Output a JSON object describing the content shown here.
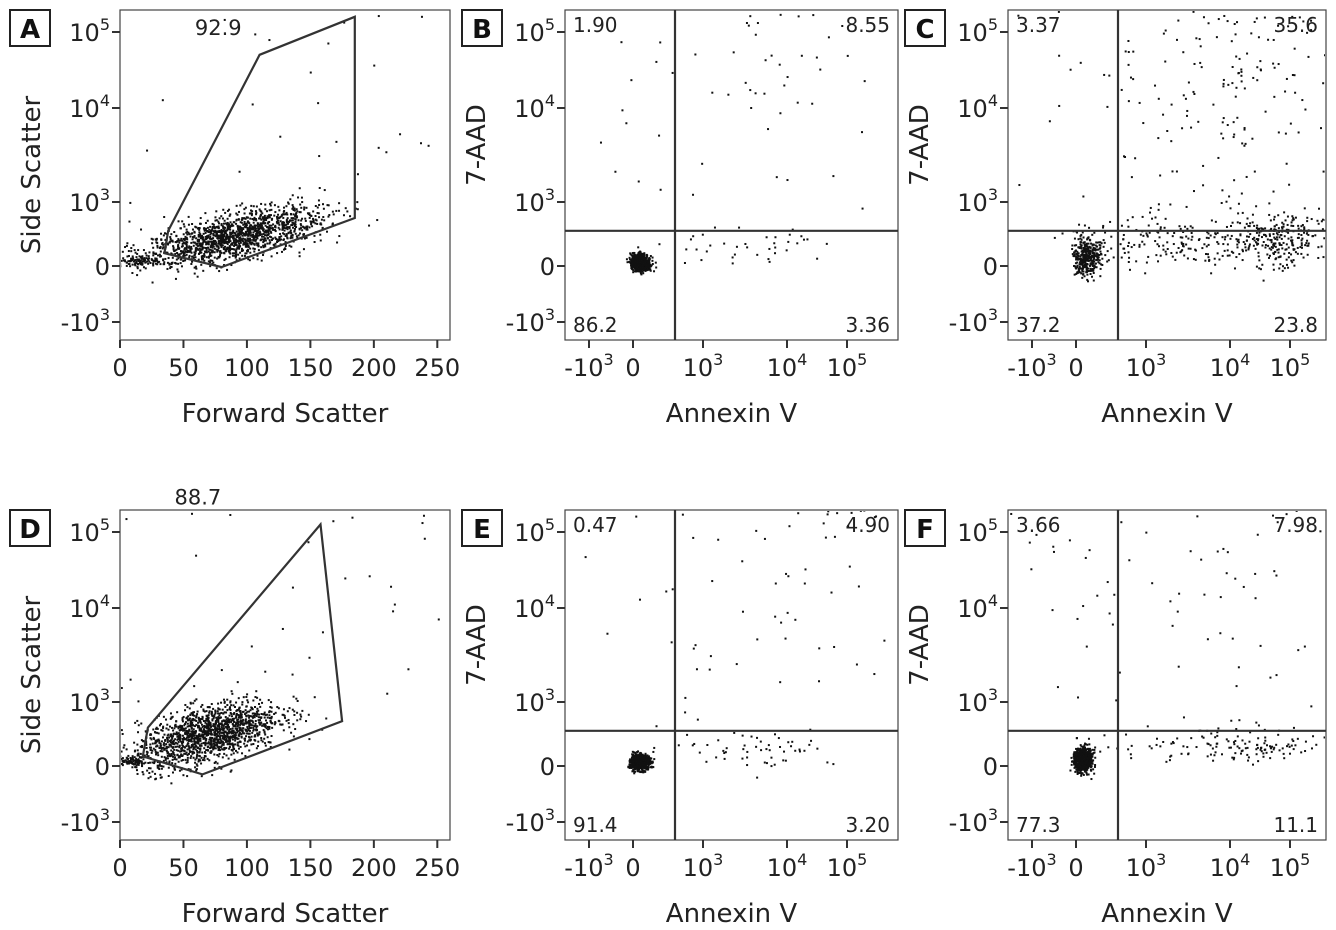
{
  "panels": [
    {
      "id": "A",
      "letter": "A",
      "type": "scatter-gate",
      "xlabel": "Forward Scatter",
      "ylabel": "Side Scatter",
      "x_ticks": [
        "0",
        "50",
        "100",
        "150",
        "200",
        "250"
      ],
      "y_ticks": [
        "-10",
        "0",
        "10",
        "10",
        "10"
      ],
      "y_tick_exponents": [
        "3",
        "",
        "3",
        "4",
        "5"
      ],
      "gate_value": "92.9",
      "chart_data": {
        "type": "scatter",
        "x_scale": "linear (×1000)",
        "y_scale": "biexponential",
        "xlim": [
          0,
          260
        ],
        "gate_percent": 92.9,
        "gate_polygon": [
          [
            38,
            0.55
          ],
          [
            110,
            2.7
          ],
          [
            185,
            3.2
          ],
          [
            185,
            0.75
          ],
          [
            80,
            -0.02
          ],
          [
            35,
            0.2
          ]
        ],
        "clusters": [
          {
            "x_mean": 90,
            "x_sd": 35,
            "y_mean": 0.45,
            "y_sd": 0.18,
            "n": 1500,
            "slope": 0.004
          },
          {
            "x_mean": 12,
            "x_sd": 8,
            "y_mean": 0.07,
            "y_sd": 0.04,
            "n": 80,
            "slope": 0
          }
        ]
      }
    },
    {
      "id": "B",
      "letter": "B",
      "type": "quadrant",
      "xlabel": "Annexin V",
      "ylabel": "7-AAD",
      "x_ticks": [
        "-10",
        "0",
        "10",
        "10",
        "10"
      ],
      "x_tick_exponents": [
        "3",
        "",
        "3",
        "4",
        "5"
      ],
      "y_ticks": [
        "-10",
        "0",
        "10",
        "10",
        "10"
      ],
      "y_tick_exponents": [
        "3",
        "",
        "3",
        "4",
        "5"
      ],
      "quadrants": {
        "ul": "1.90",
        "ur": "8.55",
        "ll": "86.2",
        "lr": "3.36"
      },
      "chart_data": {
        "type": "scatter",
        "x_scale": "biexponential",
        "y_scale": "biexponential",
        "quadrant_percent": {
          "ul": 1.9,
          "ur": 8.55,
          "ll": 86.2,
          "lr": 3.36
        },
        "clusters": [
          {
            "x_mean": 0.1,
            "x_sd": 0.07,
            "y_mean": 0.05,
            "y_sd": 0.07,
            "n": 650,
            "slope": 0
          },
          {
            "x_mean": 3.0,
            "x_sd": 0.3,
            "y_mean": 4.1,
            "y_sd": 0.12,
            "n": 120,
            "slope": 0
          },
          {
            "x_mean": 1.6,
            "x_sd": 0.8,
            "y_mean": 3.0,
            "y_sd": 0.9,
            "n": 45,
            "slope": 0
          },
          {
            "x_mean": 1.5,
            "x_sd": 0.7,
            "y_mean": 0.3,
            "y_sd": 0.2,
            "n": 40,
            "slope": 0
          }
        ]
      }
    },
    {
      "id": "C",
      "letter": "C",
      "type": "quadrant",
      "xlabel": "Annexin V",
      "ylabel": "7-AAD",
      "x_ticks": [
        "-10",
        "0",
        "10",
        "10",
        "10"
      ],
      "x_tick_exponents": [
        "3",
        "",
        "3",
        "4",
        "5"
      ],
      "y_ticks": [
        "-10",
        "0",
        "10",
        "10",
        "10"
      ],
      "y_tick_exponents": [
        "3",
        "",
        "3",
        "4",
        "5"
      ],
      "quadrants": {
        "ul": "3.37",
        "ur": "35.6",
        "ll": "37.2",
        "lr": "23.8"
      },
      "chart_data": {
        "type": "scatter",
        "x_scale": "biexponential",
        "y_scale": "biexponential",
        "quadrant_percent": {
          "ul": 3.37,
          "ur": 35.6,
          "ll": 37.2,
          "lr": 23.8
        },
        "clusters": [
          {
            "x_mean": 0.15,
            "x_sd": 0.1,
            "y_mean": 0.12,
            "y_sd": 0.15,
            "n": 350,
            "slope": 0
          },
          {
            "x_mean": 2.9,
            "x_sd": 0.3,
            "y_mean": 4.1,
            "y_sd": 0.2,
            "n": 280,
            "slope": 0
          },
          {
            "x_mean": 2.8,
            "x_sd": 0.45,
            "y_mean": 0.4,
            "y_sd": 0.22,
            "n": 260,
            "slope": 0
          },
          {
            "x_mean": 1.3,
            "x_sd": 0.7,
            "y_mean": 0.4,
            "y_sd": 0.2,
            "n": 200,
            "slope": 0
          },
          {
            "x_mean": 2.0,
            "x_sd": 0.9,
            "y_mean": 2.5,
            "y_sd": 0.9,
            "n": 180,
            "slope": 0
          }
        ]
      }
    },
    {
      "id": "D",
      "letter": "D",
      "type": "scatter-gate",
      "xlabel": "Forward Scatter",
      "ylabel": "Side Scatter",
      "x_ticks": [
        "0",
        "50",
        "100",
        "150",
        "200",
        "250"
      ],
      "y_ticks": [
        "-10",
        "0",
        "10",
        "10",
        "10"
      ],
      "y_tick_exponents": [
        "3",
        "",
        "3",
        "4",
        "5"
      ],
      "gate_value": "88.7",
      "chart_data": {
        "type": "scatter",
        "x_scale": "linear (×1000)",
        "y_scale": "biexponential",
        "xlim": [
          0,
          260
        ],
        "gate_percent": 88.7,
        "gate_polygon": [
          [
            22,
            0.6
          ],
          [
            158,
            3.1
          ],
          [
            175,
            0.7
          ],
          [
            65,
            -0.15
          ],
          [
            18,
            0.15
          ]
        ],
        "clusters": [
          {
            "x_mean": 70,
            "x_sd": 28,
            "y_mean": 0.5,
            "y_sd": 0.22,
            "n": 1500,
            "slope": 0.005
          },
          {
            "x_mean": 10,
            "x_sd": 6,
            "y_mean": 0.07,
            "y_sd": 0.04,
            "n": 80,
            "slope": 0
          }
        ]
      }
    },
    {
      "id": "E",
      "letter": "E",
      "type": "quadrant",
      "xlabel": "Annexin V",
      "ylabel": "7-AAD",
      "x_ticks": [
        "-10",
        "0",
        "10",
        "10",
        "10"
      ],
      "x_tick_exponents": [
        "3",
        "",
        "3",
        "4",
        "5"
      ],
      "y_ticks": [
        "-10",
        "0",
        "10",
        "10",
        "10"
      ],
      "y_tick_exponents": [
        "3",
        "",
        "3",
        "4",
        "5"
      ],
      "quadrants": {
        "ul": "0.47",
        "ur": "4.90",
        "ll": "91.4",
        "lr": "3.20"
      },
      "chart_data": {
        "type": "scatter",
        "x_scale": "biexponential",
        "y_scale": "biexponential",
        "quadrant_percent": {
          "ul": 0.47,
          "ur": 4.9,
          "ll": 91.4,
          "lr": 3.2
        },
        "clusters": [
          {
            "x_mean": 0.1,
            "x_sd": 0.07,
            "y_mean": 0.05,
            "y_sd": 0.06,
            "n": 650,
            "slope": 0
          },
          {
            "x_mean": 2.9,
            "x_sd": 0.3,
            "y_mean": 3.6,
            "y_sd": 0.2,
            "n": 110,
            "slope": 0
          },
          {
            "x_mean": 1.6,
            "x_sd": 0.6,
            "y_mean": 0.3,
            "y_sd": 0.15,
            "n": 60,
            "slope": 0
          },
          {
            "x_mean": 1.8,
            "x_sd": 0.8,
            "y_mean": 2.4,
            "y_sd": 0.9,
            "n": 25,
            "slope": 0
          }
        ]
      }
    },
    {
      "id": "F",
      "letter": "F",
      "type": "quadrant",
      "xlabel": "Annexin V",
      "ylabel": "7-AAD",
      "x_ticks": [
        "-10",
        "0",
        "10",
        "10",
        "10"
      ],
      "x_tick_exponents": [
        "3",
        "",
        "3",
        "4",
        "5"
      ],
      "y_ticks": [
        "-10",
        "0",
        "10",
        "10",
        "10"
      ],
      "y_tick_exponents": [
        "3",
        "",
        "3",
        "4",
        "5"
      ],
      "quadrants": {
        "ul": "3.66",
        "ur": "7.98",
        "ll": "77.3",
        "lr": "11.1"
      },
      "chart_data": {
        "type": "scatter",
        "x_scale": "biexponential",
        "y_scale": "biexponential",
        "quadrant_percent": {
          "ul": 3.66,
          "ur": 7.98,
          "ll": 77.3,
          "lr": 11.1
        },
        "clusters": [
          {
            "x_mean": 0.1,
            "x_sd": 0.07,
            "y_mean": 0.1,
            "y_sd": 0.1,
            "n": 650,
            "slope": 0
          },
          {
            "x_mean": 2.9,
            "x_sd": 0.3,
            "y_mean": 3.6,
            "y_sd": 0.15,
            "n": 130,
            "slope": 0
          },
          {
            "x_mean": 2.0,
            "x_sd": 0.7,
            "y_mean": 0.3,
            "y_sd": 0.15,
            "n": 140,
            "slope": 0
          },
          {
            "x_mean": 1.8,
            "x_sd": 0.8,
            "y_mean": 2.3,
            "y_sd": 0.9,
            "n": 40,
            "slope": 0
          }
        ]
      }
    }
  ]
}
